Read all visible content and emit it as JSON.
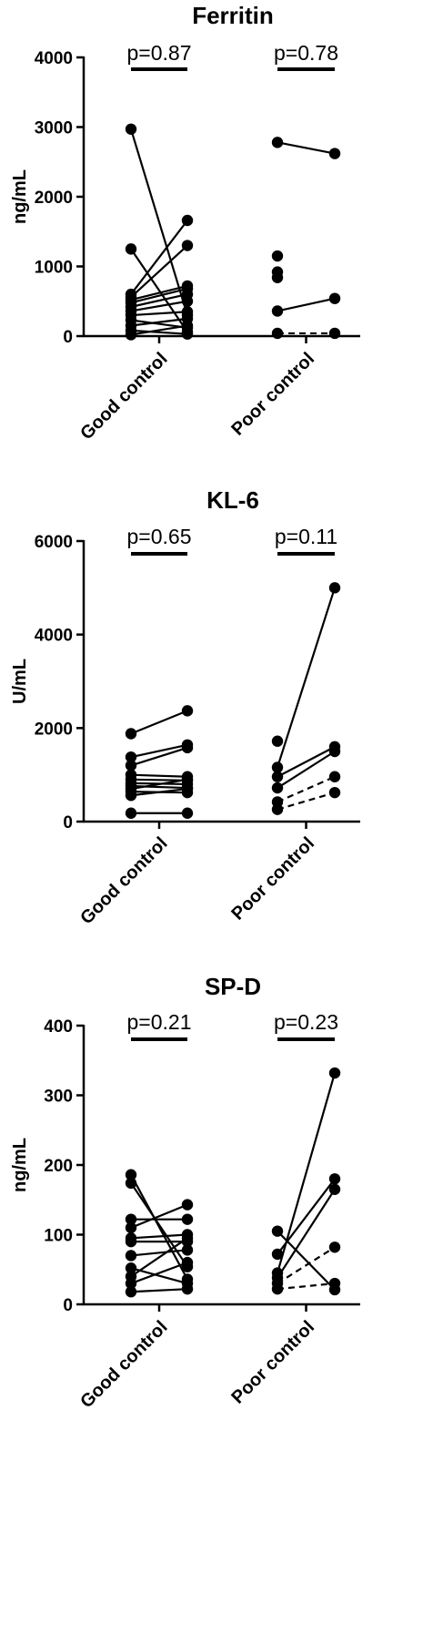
{
  "chart_data": [
    {
      "type": "scatter",
      "title": "Ferritin",
      "ylabel": "ng/mL",
      "ylim": [
        0,
        4000
      ],
      "yticks": [
        0,
        1000,
        2000,
        3000,
        4000
      ],
      "yticklabels": [
        "0",
        "1000",
        "2000",
        "3000",
        "4000"
      ],
      "categories": [
        "Good control",
        "Poor control"
      ],
      "pvalues": [
        "p=0.87",
        "p=0.78"
      ],
      "groups": [
        {
          "name": "Good control",
          "pairs": [
            {
              "before": 2970,
              "after": 300,
              "dashed": false
            },
            {
              "before": 1250,
              "after": 60,
              "dashed": false
            },
            {
              "before": 600,
              "after": 1660,
              "dashed": false
            },
            {
              "before": 560,
              "after": 1300,
              "dashed": false
            },
            {
              "before": 520,
              "after": 720,
              "dashed": false
            },
            {
              "before": 480,
              "after": 680,
              "dashed": false
            },
            {
              "before": 420,
              "after": 600,
              "dashed": false
            },
            {
              "before": 360,
              "after": 500,
              "dashed": false
            },
            {
              "before": 300,
              "after": 350,
              "dashed": false
            },
            {
              "before": 230,
              "after": 120,
              "dashed": false
            },
            {
              "before": 150,
              "after": 250,
              "dashed": false
            },
            {
              "before": 80,
              "after": 30,
              "dashed": false
            },
            {
              "before": 20,
              "after": 150,
              "dashed": false
            }
          ]
        },
        {
          "name": "Poor control",
          "pairs": [
            {
              "before": 2780,
              "after": 2620,
              "dashed": false
            },
            {
              "before": 1150,
              "after": null,
              "dashed": false
            },
            {
              "before": 920,
              "after": null,
              "dashed": false
            },
            {
              "before": 840,
              "after": null,
              "dashed": false
            },
            {
              "before": 360,
              "after": 540,
              "dashed": false
            },
            {
              "before": 40,
              "after": 40,
              "dashed": true
            }
          ]
        }
      ]
    },
    {
      "type": "scatter",
      "title": "KL-6",
      "ylabel": "U/mL",
      "ylim": [
        0,
        6000
      ],
      "yticks": [
        0,
        2000,
        4000,
        6000
      ],
      "yticklabels": [
        "0",
        "2000",
        "4000",
        "6000"
      ],
      "categories": [
        "Good control",
        "Poor control"
      ],
      "pvalues": [
        "p=0.65",
        "p=0.11"
      ],
      "groups": [
        {
          "name": "Good control",
          "pairs": [
            {
              "before": 1880,
              "after": 2370,
              "dashed": false
            },
            {
              "before": 1380,
              "after": 1640,
              "dashed": false
            },
            {
              "before": 1200,
              "after": 1580,
              "dashed": false
            },
            {
              "before": 1000,
              "after": 960,
              "dashed": false
            },
            {
              "before": 900,
              "after": 880,
              "dashed": false
            },
            {
              "before": 820,
              "after": 800,
              "dashed": false
            },
            {
              "before": 760,
              "after": 720,
              "dashed": false
            },
            {
              "before": 700,
              "after": 900,
              "dashed": false
            },
            {
              "before": 640,
              "after": 620,
              "dashed": false
            },
            {
              "before": 560,
              "after": 700,
              "dashed": false
            },
            {
              "before": 180,
              "after": 180,
              "dashed": false
            }
          ]
        },
        {
          "name": "Poor control",
          "pairs": [
            {
              "before": 1720,
              "after": null,
              "dashed": false
            },
            {
              "before": 1160,
              "after": 5000,
              "dashed": false
            },
            {
              "before": 960,
              "after": 1600,
              "dashed": false
            },
            {
              "before": 720,
              "after": 1500,
              "dashed": false
            },
            {
              "before": 420,
              "after": 960,
              "dashed": true
            },
            {
              "before": 260,
              "after": 620,
              "dashed": true
            }
          ]
        }
      ]
    },
    {
      "type": "scatter",
      "title": "SP-D",
      "ylabel": "ng/mL",
      "ylim": [
        0,
        400
      ],
      "yticks": [
        0,
        100,
        200,
        300,
        400
      ],
      "yticklabels": [
        "0",
        "100",
        "200",
        "300",
        "400"
      ],
      "categories": [
        "Good control",
        "Poor control"
      ],
      "pvalues": [
        "p=0.21",
        "p=0.23"
      ],
      "groups": [
        {
          "name": "Good control",
          "pairs": [
            {
              "before": 186,
              "after": 36,
              "dashed": false
            },
            {
              "before": 174,
              "after": 54,
              "dashed": false
            },
            {
              "before": 122,
              "after": 122,
              "dashed": false
            },
            {
              "before": 110,
              "after": 143,
              "dashed": false
            },
            {
              "before": 95,
              "after": 100,
              "dashed": false
            },
            {
              "before": 90,
              "after": 90,
              "dashed": false
            },
            {
              "before": 70,
              "after": 78,
              "dashed": false
            },
            {
              "before": 52,
              "after": 30,
              "dashed": false
            },
            {
              "before": 40,
              "after": 95,
              "dashed": false
            },
            {
              "before": 30,
              "after": 60,
              "dashed": false
            },
            {
              "before": 18,
              "after": 22,
              "dashed": false
            }
          ]
        },
        {
          "name": "Poor control",
          "pairs": [
            {
              "before": 105,
              "after": 21,
              "dashed": false
            },
            {
              "before": 72,
              "after": 180,
              "dashed": false
            },
            {
              "before": 45,
              "after": 332,
              "dashed": false
            },
            {
              "before": 38,
              "after": 165,
              "dashed": false
            },
            {
              "before": 30,
              "after": 82,
              "dashed": true
            },
            {
              "before": 22,
              "after": 30,
              "dashed": true
            }
          ]
        }
      ]
    }
  ]
}
